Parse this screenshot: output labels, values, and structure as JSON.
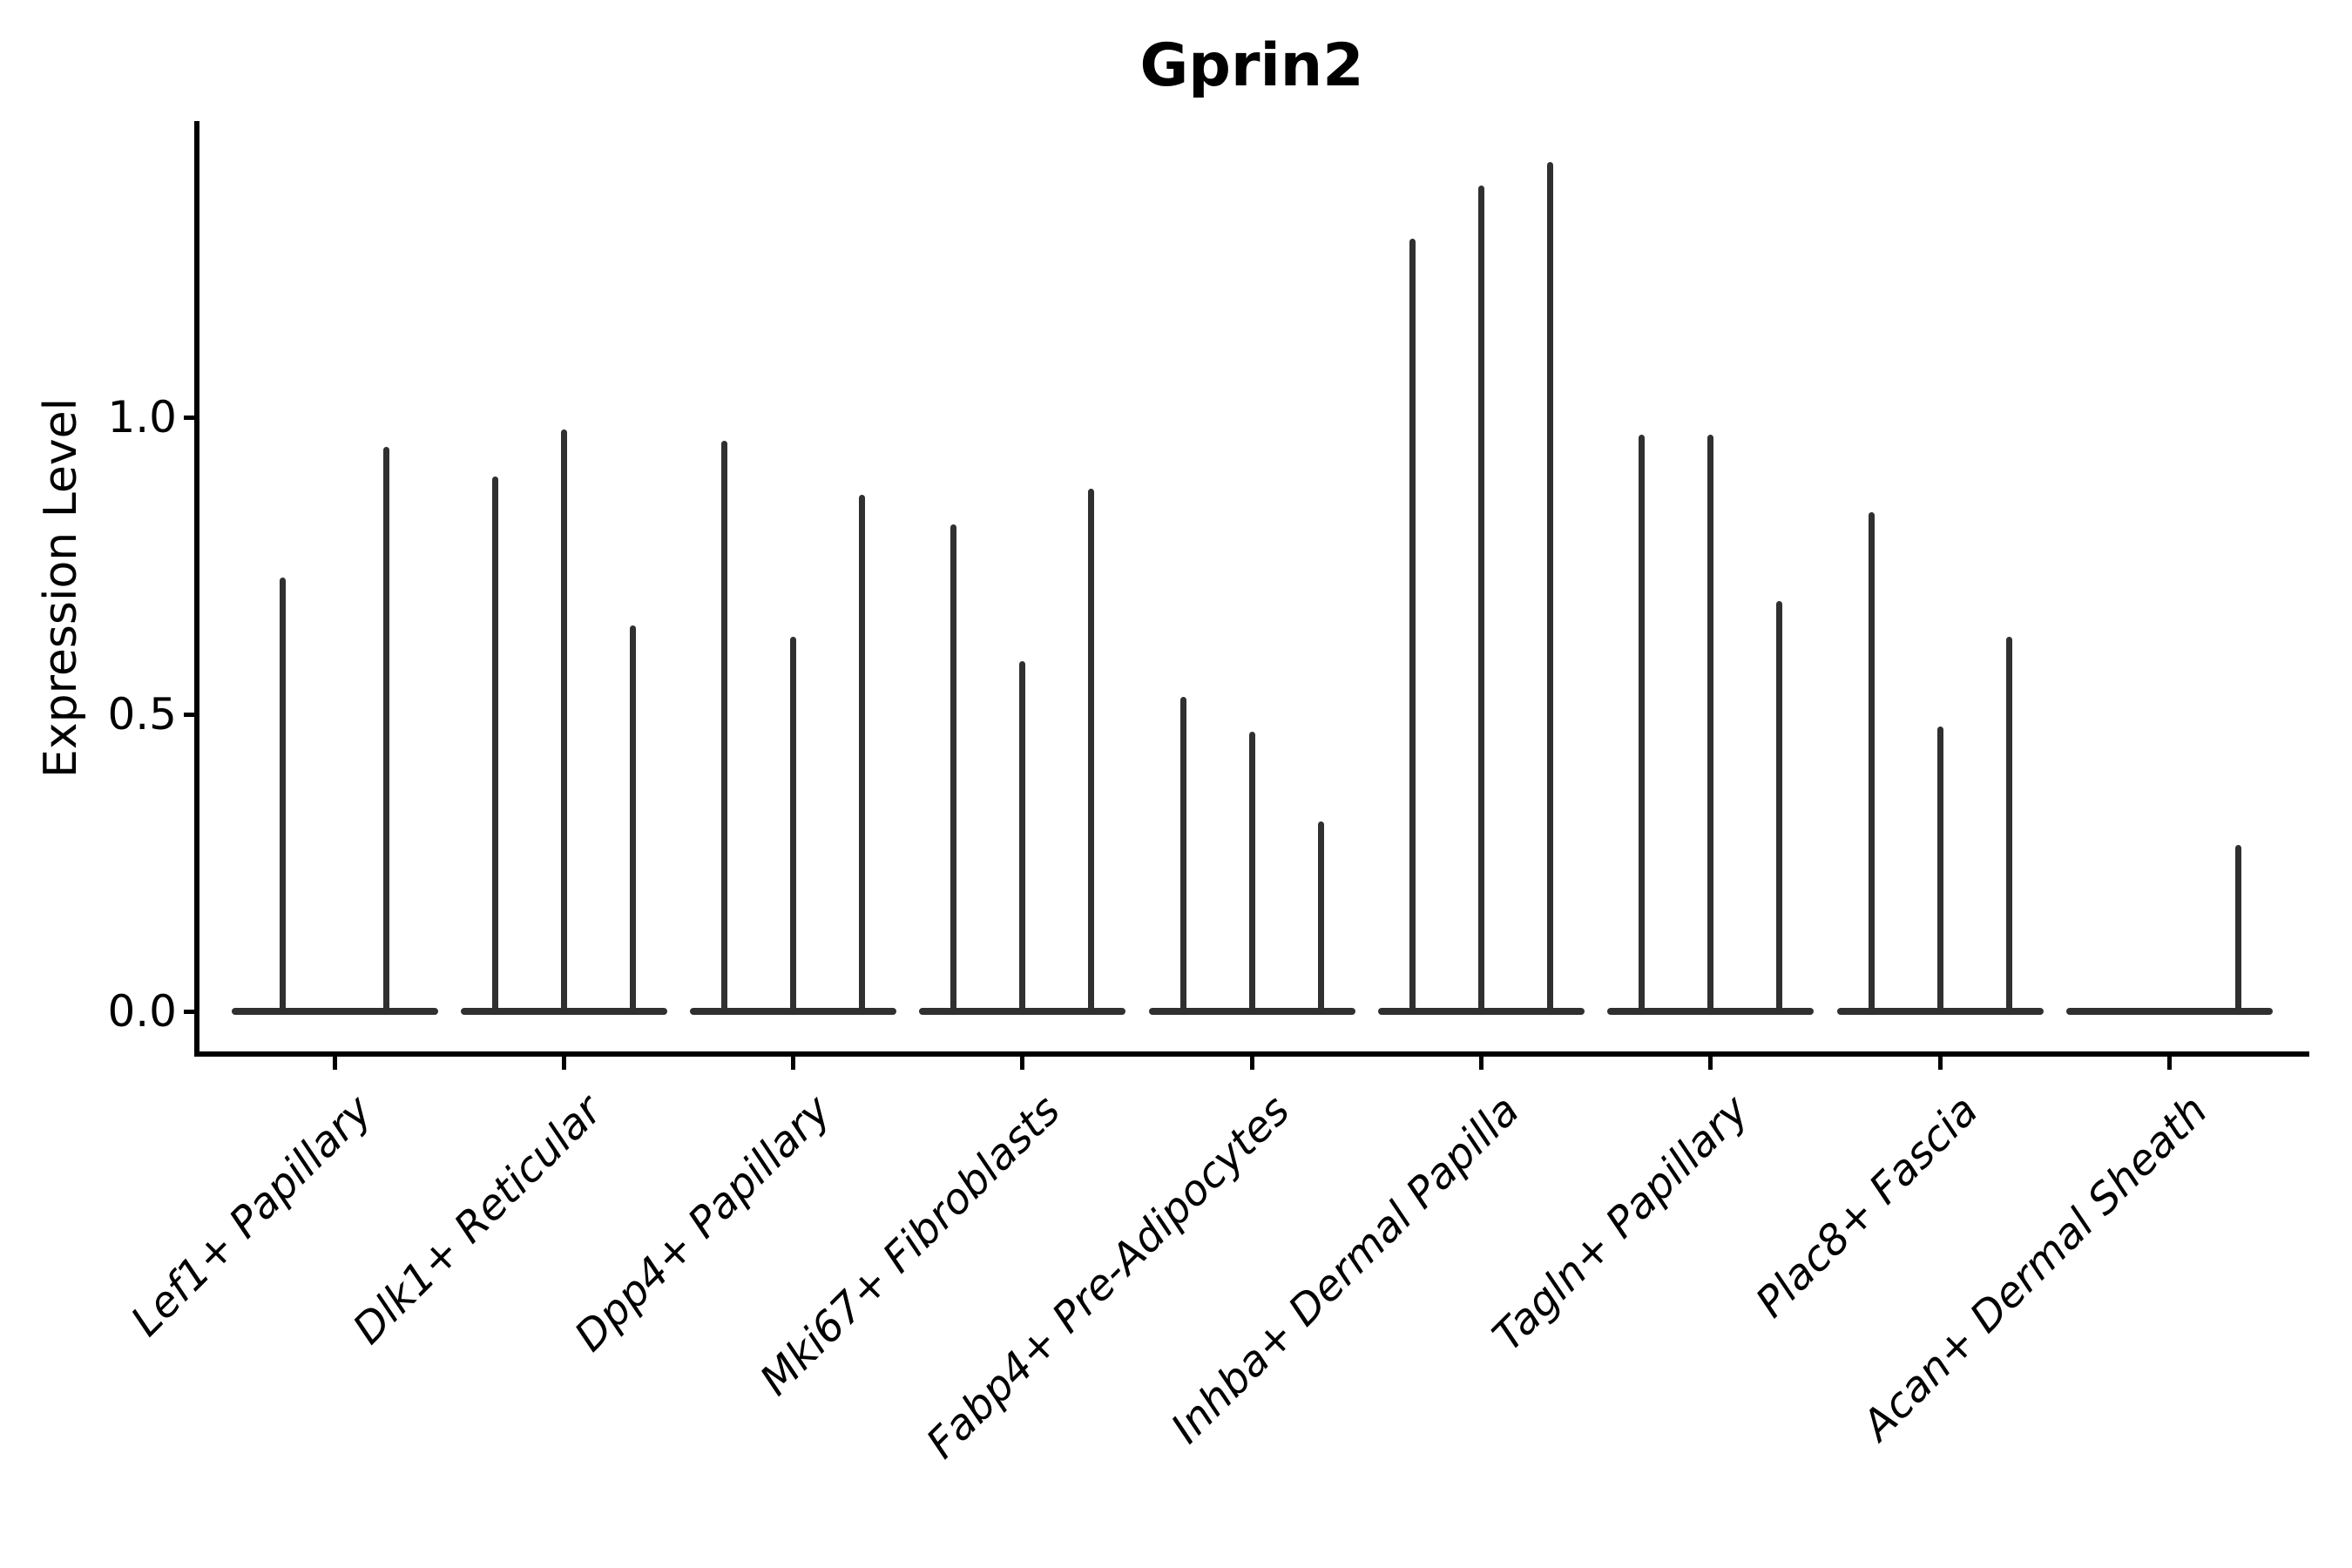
{
  "chart_data": {
    "type": "violin",
    "title": "Gprin2",
    "ylabel": "Expression Level",
    "xlabel": "",
    "ylim": [
      -0.07,
      1.5
    ],
    "yticks": [
      {
        "value": 0.0,
        "label": "0.0"
      },
      {
        "value": 0.5,
        "label": "0.5"
      },
      {
        "value": 1.0,
        "label": "1.0"
      }
    ],
    "legend": "none",
    "grid": false,
    "note": "Each cluster shows thin collapsed violins: bulk of cells at expression 0 (flat base line) with a narrow spike reaching the max expression value.",
    "categories": [
      "Lef1+ Papillary",
      "Dlk1+ Reticular",
      "Dpp4+ Papillary",
      "Mki67+ Fibroblasts",
      "Fabp4+ Pre-Adipocytes",
      "Inhba+ Dermal Papilla",
      "Tagln+ Papillary",
      "Plac8+ Fascia",
      "Acan+ Dermal Sheath"
    ],
    "groups": [
      {
        "label": "Lef1+ Papillary",
        "spike_max_values": [
          0.73,
          0.95
        ]
      },
      {
        "label": "Dlk1+ Reticular",
        "spike_max_values": [
          0.9,
          0.98,
          0.65
        ]
      },
      {
        "label": "Dpp4+ Papillary",
        "spike_max_values": [
          0.96,
          0.63,
          0.87
        ]
      },
      {
        "label": "Mki67+ Fibroblasts",
        "spike_max_values": [
          0.82,
          0.59,
          0.88
        ]
      },
      {
        "label": "Fabp4+ Pre-Adipocytes",
        "spike_max_values": [
          0.53,
          0.47,
          0.32
        ]
      },
      {
        "label": "Inhba+ Dermal Papilla",
        "spike_max_values": [
          1.3,
          1.39,
          1.43
        ]
      },
      {
        "label": "Tagln+ Papillary",
        "spike_max_values": [
          0.97,
          0.97,
          0.69
        ]
      },
      {
        "label": "Plac8+ Fascia",
        "spike_max_values": [
          0.84,
          0.48,
          0.63
        ]
      },
      {
        "label": "Acan+ Dermal Sheath",
        "spike_max_values": [
          0.0,
          0.0,
          0.28
        ]
      }
    ],
    "colors": {
      "violin_line": "#303030",
      "spine": "#000000",
      "text": "#000000",
      "background": "#ffffff"
    }
  }
}
